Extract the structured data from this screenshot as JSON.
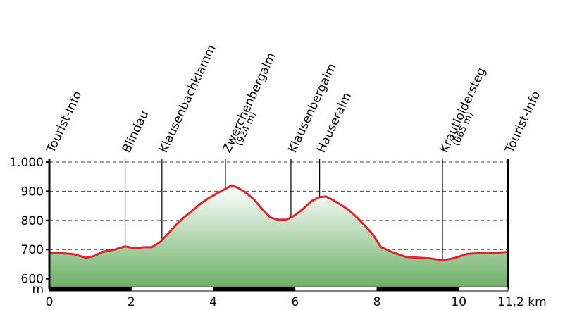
{
  "chart_data": {
    "type": "area",
    "title": "",
    "y_unit_label": "m",
    "x_unit_label": "11,2 km",
    "xlim": [
      0,
      11.2
    ],
    "ylim": [
      575,
      1000
    ],
    "grid": "dashed-horizontal",
    "y_ticks": [
      {
        "value": 1000,
        "label": "1.000"
      },
      {
        "value": 900,
        "label": "900"
      },
      {
        "value": 800,
        "label": "800"
      },
      {
        "value": 700,
        "label": "700"
      },
      {
        "value": 600,
        "label": "600"
      }
    ],
    "x_ticks": [
      {
        "value": 0,
        "label": "0"
      },
      {
        "value": 2,
        "label": "2"
      },
      {
        "value": 4,
        "label": "4"
      },
      {
        "value": 6,
        "label": "6"
      },
      {
        "value": 8,
        "label": "8"
      },
      {
        "value": 10,
        "label": "10"
      }
    ],
    "series": [
      {
        "x": [
          0,
          0.3,
          0.6,
          0.9,
          1.1,
          1.3,
          1.6,
          1.85,
          2.1,
          2.3,
          2.5,
          2.7,
          2.9,
          3.1,
          3.3,
          3.5,
          3.7,
          3.9,
          4.1,
          4.3,
          4.45,
          4.6,
          4.8,
          5.0,
          5.2,
          5.4,
          5.6,
          5.8,
          6.0,
          6.2,
          6.4,
          6.6,
          6.75,
          6.9,
          7.1,
          7.3,
          7.5,
          7.7,
          7.9,
          8.1,
          8.4,
          8.7,
          9.0,
          9.3,
          9.6,
          9.9,
          10.2,
          10.5,
          10.8,
          11.2
        ],
        "y": [
          688,
          688,
          684,
          672,
          678,
          692,
          700,
          711,
          704,
          708,
          708,
          725,
          755,
          785,
          812,
          834,
          858,
          877,
          893,
          908,
          920,
          912,
          895,
          872,
          838,
          810,
          802,
          803,
          818,
          840,
          866,
          880,
          882,
          872,
          855,
          837,
          812,
          783,
          752,
          708,
          690,
          675,
          672,
          670,
          663,
          671,
          685,
          688,
          688,
          692
        ]
      }
    ],
    "waypoints": [
      {
        "x": 0.0,
        "name": "Tourist-Info",
        "sub": ""
      },
      {
        "x": 1.85,
        "name": "Blindau",
        "sub": ""
      },
      {
        "x": 2.75,
        "name": "Klausenbachklamm",
        "sub": ""
      },
      {
        "x": 4.3,
        "name": "Zwerchenbergalm",
        "sub": "(924 m)"
      },
      {
        "x": 5.9,
        "name": "Klausenbergalm",
        "sub": ""
      },
      {
        "x": 6.6,
        "name": "Hauseralm",
        "sub": ""
      },
      {
        "x": 9.6,
        "name": "Krautloidersteg",
        "sub": "(665 m)"
      },
      {
        "x": 11.2,
        "name": "Tourist-Info",
        "sub": ""
      }
    ],
    "colors": {
      "line": "#e3212b",
      "fill_top": "#ffffff",
      "fill_bottom": "#6fb16a",
      "grid": "#444444",
      "axis": "#000000"
    }
  }
}
